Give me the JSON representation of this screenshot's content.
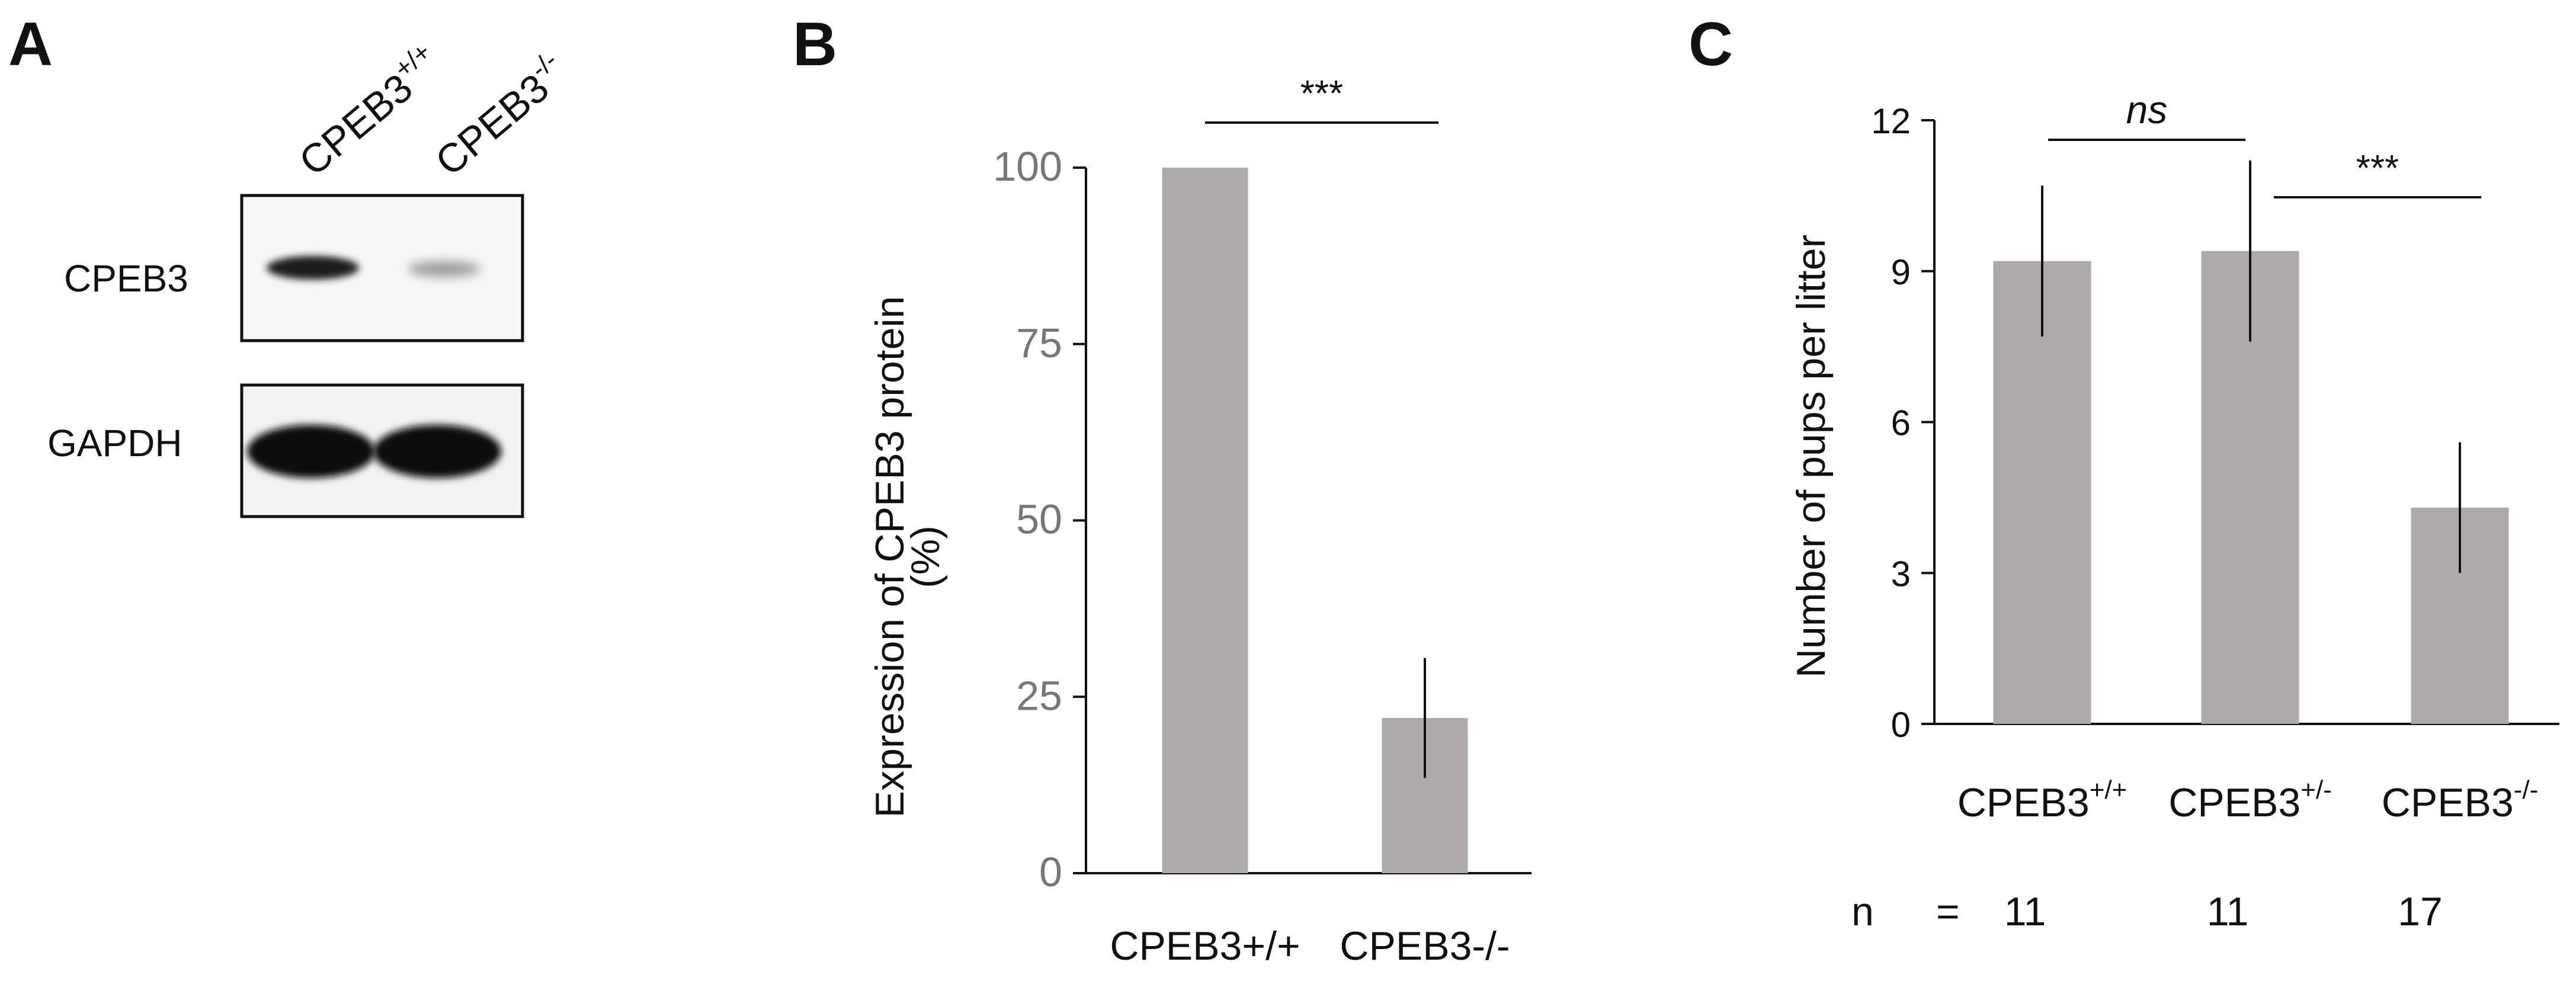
{
  "panels": {
    "a": {
      "letter": "A",
      "lanes": [
        {
          "base": "CPEB3",
          "sup": "+/+"
        },
        {
          "base": "CPEB3",
          "sup": "-/-"
        }
      ],
      "blots": [
        {
          "label": "CPEB3"
        },
        {
          "label": "GAPDH"
        }
      ]
    },
    "b": {
      "letter": "B"
    },
    "c": {
      "letter": "C",
      "n_label": "n",
      "n_eq": "=",
      "n_values": [
        "11",
        "11",
        "17"
      ]
    }
  },
  "chart_data": [
    {
      "type": "bar",
      "panel": "B",
      "categories": [
        "CPEB3+/+",
        "CPEB3-/-"
      ],
      "values": [
        100,
        22
      ],
      "error": [
        0,
        8.5
      ],
      "ylabel_line1": "Expression of CPEB3 protein",
      "ylabel_line2": "(%)",
      "ylim": [
        0,
        100
      ],
      "yticks": [
        0,
        25,
        50,
        75,
        100
      ],
      "bar_color": "#aeaaaa",
      "significance": [
        {
          "between": [
            0,
            1
          ],
          "label": "***"
        }
      ]
    },
    {
      "type": "bar",
      "panel": "C",
      "categories": [
        {
          "base": "CPEB3",
          "sup": "+/+"
        },
        {
          "base": "CPEB3",
          "sup": "+/-"
        },
        {
          "base": "CPEB3",
          "sup": "-/-"
        }
      ],
      "values": [
        9.2,
        9.4,
        4.3
      ],
      "error": [
        1.5,
        1.8,
        1.3
      ],
      "ylabel": "Number of pups per litter",
      "ylim": [
        0,
        12
      ],
      "yticks": [
        0,
        3,
        6,
        9,
        12
      ],
      "bar_color": "#aeaaaa",
      "significance": [
        {
          "between": [
            0,
            1
          ],
          "label": "ns"
        },
        {
          "between": [
            1,
            2
          ],
          "label": "***"
        }
      ]
    }
  ]
}
